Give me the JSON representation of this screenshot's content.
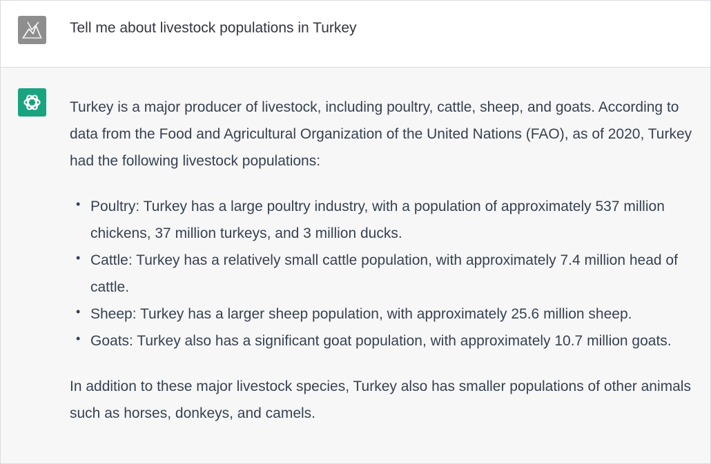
{
  "user_message": {
    "avatar_icon": "user-avatar-icon",
    "text": "Tell me about livestock populations in Turkey"
  },
  "assistant_message": {
    "avatar_icon": "openai-logo-icon",
    "avatar_color": "#19a37f",
    "intro": "Turkey is a major producer of livestock, including poultry, cattle, sheep, and goats. According to data from the Food and Agricultural Organization of the United Nations (FAO), as of 2020, Turkey had the following livestock populations:",
    "bullets": [
      "Poultry: Turkey has a large poultry industry, with a population of approximately 537 million chickens, 37 million turkeys, and 3 million ducks.",
      "Cattle: Turkey has a relatively small cattle population, with approximately 7.4 million head of cattle.",
      "Sheep: Turkey has a larger sheep population, with approximately 25.6 million sheep.",
      "Goats: Turkey also has a significant goat population, with approximately 10.7 million goats."
    ],
    "bullet_marker": "•",
    "closing": "In addition to these major livestock species, Turkey also has smaller populations of other animals such as horses, donkeys, and camels."
  }
}
